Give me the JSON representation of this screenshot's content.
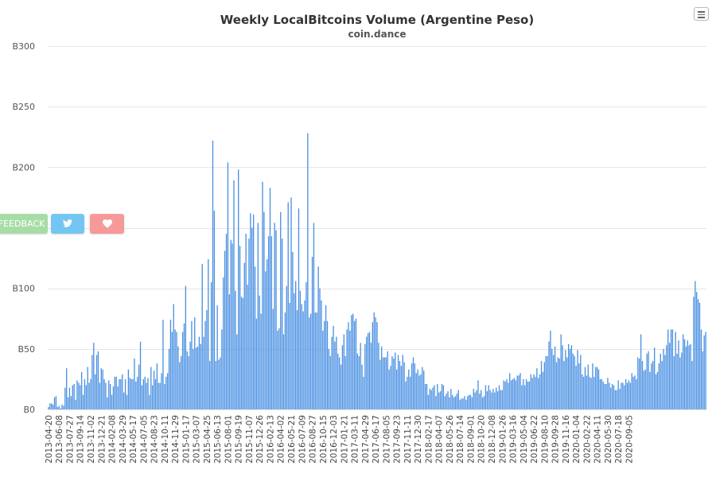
{
  "chart_data": {
    "type": "bar",
    "title": "Weekly LocalBitcoins Volume (Argentine Peso)",
    "subtitle": "coin.dance",
    "ylim": [
      0,
      300
    ],
    "yticks": [
      "B0",
      "B50",
      "B100",
      "B150",
      "B200",
      "B250",
      "B300"
    ],
    "ytick_values": [
      0,
      50,
      100,
      150,
      200,
      250,
      300
    ],
    "start_date": "2013-04-20",
    "interval_days": 7,
    "x_tick_labels": [
      "2013-04-20",
      "2013-06-08",
      "2013-07-27",
      "2013-09-14",
      "2013-11-02",
      "2013-12-21",
      "2014-02-08",
      "2014-03-29",
      "2014-05-17",
      "2014-07-05",
      "2014-08-23",
      "2014-10-11",
      "2014-11-29",
      "2015-01-17",
      "2015-03-07",
      "2015-04-25",
      "2015-06-13",
      "2015-08-01",
      "2015-09-19",
      "2015-11-07",
      "2015-12-26",
      "2016-02-13",
      "2016-04-02",
      "2016-05-21",
      "2016-07-09",
      "2016-08-27",
      "2016-10-15",
      "2016-12-03",
      "2017-01-21",
      "2017-03-11",
      "2017-04-29",
      "2017-06-17",
      "2017-08-05",
      "2017-09-23",
      "2017-11-11",
      "2017-12-30",
      "2018-02-17",
      "2018-04-07",
      "2018-05-26",
      "2018-07-14",
      "2018-09-01",
      "2018-10-20",
      "2018-12-08",
      "2019-01-26",
      "2019-03-16",
      "2019-05-04",
      "2019-06-22",
      "2019-08-10",
      "2019-09-28",
      "2019-11-16",
      "2020-01-04",
      "2020-02-22",
      "2020-04-11",
      "2020-05-30",
      "2020-07-18",
      "2020-09-05"
    ],
    "grid": true,
    "legend": "none",
    "color": "#4a90e2",
    "values": [
      2,
      5,
      5,
      4,
      10,
      11,
      2,
      3,
      1,
      4,
      3,
      18,
      34,
      10,
      18,
      11,
      20,
      21,
      8,
      24,
      22,
      20,
      31,
      12,
      25,
      20,
      35,
      22,
      25,
      45,
      55,
      29,
      45,
      48,
      22,
      34,
      33,
      25,
      22,
      10,
      24,
      21,
      12,
      19,
      27,
      27,
      19,
      25,
      25,
      29,
      14,
      25,
      12,
      33,
      26,
      25,
      25,
      42,
      23,
      27,
      37,
      56,
      20,
      25,
      27,
      22,
      26,
      12,
      35,
      20,
      32,
      25,
      38,
      22,
      22,
      30,
      74,
      21,
      27,
      30,
      50,
      74,
      64,
      87,
      66,
      64,
      52,
      39,
      44,
      64,
      71,
      102,
      48,
      44,
      56,
      73,
      50,
      76,
      51,
      52,
      60,
      54,
      120,
      60,
      73,
      82,
      124,
      40,
      105,
      222,
      164,
      40,
      86,
      41,
      43,
      66,
      109,
      131,
      145,
      204,
      95,
      140,
      137,
      189,
      98,
      62,
      198,
      135,
      93,
      92,
      121,
      145,
      103,
      141,
      162,
      150,
      161,
      118,
      75,
      154,
      94,
      79,
      188,
      163,
      114,
      124,
      143,
      183,
      143,
      83,
      154,
      148,
      65,
      67,
      163,
      141,
      62,
      80,
      102,
      171,
      88,
      175,
      130,
      96,
      106,
      82,
      166,
      98,
      87,
      81,
      90,
      105,
      228,
      76,
      79,
      126,
      154,
      80,
      80,
      118,
      100,
      90,
      65,
      73,
      86,
      73,
      50,
      44,
      60,
      69,
      56,
      60,
      46,
      43,
      37,
      53,
      62,
      44,
      66,
      72,
      65,
      78,
      79,
      73,
      75,
      46,
      44,
      55,
      37,
      27,
      54,
      60,
      63,
      64,
      55,
      72,
      80,
      76,
      72,
      55,
      41,
      52,
      43,
      43,
      43,
      48,
      33,
      36,
      44,
      42,
      47,
      33,
      45,
      40,
      36,
      45,
      39,
      23,
      27,
      33,
      27,
      38,
      43,
      38,
      30,
      33,
      28,
      29,
      35,
      32,
      21,
      21,
      12,
      17,
      16,
      18,
      20,
      11,
      21,
      14,
      15,
      21,
      20,
      11,
      13,
      15,
      10,
      17,
      12,
      10,
      11,
      13,
      16,
      8,
      9,
      9,
      11,
      8,
      11,
      12,
      12,
      10,
      17,
      14,
      16,
      24,
      13,
      16,
      10,
      11,
      20,
      15,
      20,
      16,
      14,
      17,
      14,
      18,
      15,
      20,
      16,
      16,
      24,
      23,
      25,
      22,
      30,
      24,
      25,
      26,
      24,
      28,
      28,
      30,
      20,
      25,
      20,
      25,
      23,
      23,
      29,
      26,
      29,
      27,
      34,
      26,
      29,
      40,
      31,
      39,
      44,
      44,
      56,
      65,
      50,
      45,
      52,
      39,
      43,
      42,
      62,
      53,
      40,
      49,
      43,
      54,
      50,
      53,
      46,
      44,
      36,
      49,
      38,
      45,
      29,
      27,
      35,
      28,
      37,
      27,
      26,
      38,
      27,
      35,
      35,
      33,
      25,
      25,
      23,
      21,
      21,
      26,
      22,
      18,
      21,
      20,
      16,
      16,
      24,
      17,
      22,
      22,
      20,
      25,
      22,
      24,
      22,
      30,
      27,
      28,
      25,
      43,
      42,
      62,
      40,
      32,
      33,
      46,
      48,
      31,
      38,
      40,
      51,
      29,
      31,
      38,
      46,
      40,
      50,
      45,
      53,
      66,
      55,
      66,
      66,
      44,
      64,
      46,
      57,
      43,
      47,
      62,
      58,
      52,
      57,
      53,
      54,
      40,
      93,
      106,
      97,
      91,
      88,
      66,
      48,
      61,
      64
    ],
    "shown_dates_note": ""
  },
  "buttons": {
    "feedback_label": "FEEDBACK",
    "twitter_icon": "twitter-icon",
    "heart_icon": "heart-icon",
    "menu_icon": "hamburger-menu-icon"
  }
}
